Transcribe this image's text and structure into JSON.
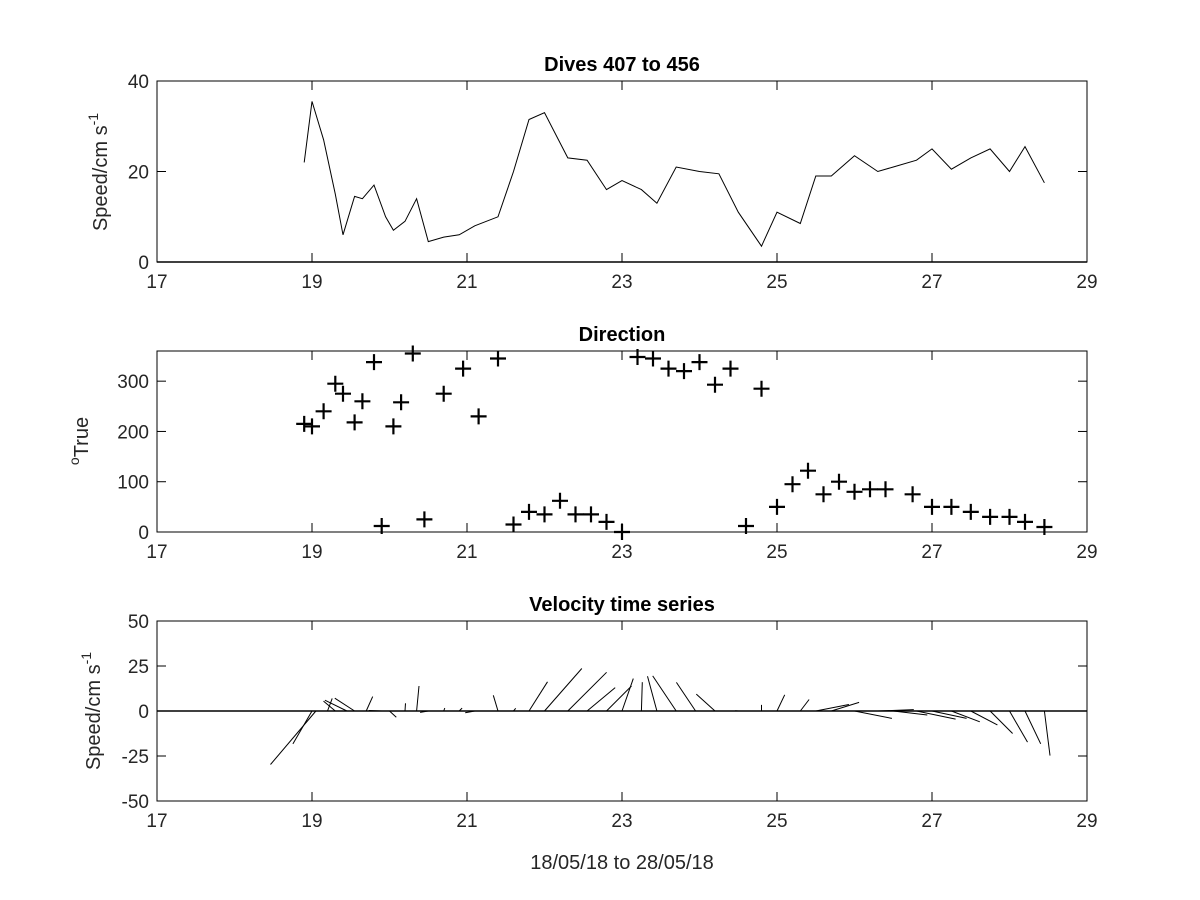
{
  "chart_data": [
    {
      "type": "line",
      "title": "Dives 407 to 456",
      "ylabel": {
        "main": "Speed/cm s",
        "superscript": "-1"
      },
      "xlim": [
        17,
        29
      ],
      "ylim": [
        0,
        40
      ],
      "xticks": [
        17,
        19,
        21,
        23,
        25,
        27,
        29
      ],
      "yticks": [
        0,
        20,
        40
      ],
      "baseline": 0,
      "series": [
        {
          "x": [
            18.9,
            19.0,
            19.15,
            19.3,
            19.4,
            19.55,
            19.65,
            19.8,
            19.95,
            20.05,
            20.2,
            20.35,
            20.5,
            20.7,
            20.9,
            21.1,
            21.4,
            21.6,
            21.8,
            22.0,
            22.3,
            22.55,
            22.8,
            23.0,
            23.25,
            23.45,
            23.7,
            24.0,
            24.25,
            24.5,
            24.8,
            25.0,
            25.3,
            25.5,
            25.7,
            26.0,
            26.3,
            26.5,
            26.8,
            27.0,
            27.25,
            27.5,
            27.75,
            28.0,
            28.2,
            28.45
          ],
          "y": [
            22,
            35.5,
            27,
            15,
            6,
            14.5,
            14,
            17,
            10,
            7,
            9,
            14,
            4.5,
            5.5,
            6,
            8,
            10,
            20,
            31.5,
            33,
            23,
            22.5,
            16,
            18,
            16,
            13,
            21,
            20,
            19.5,
            11,
            3.5,
            11,
            8.5,
            19,
            19,
            23.5,
            20,
            21,
            22.5,
            25,
            20.5,
            23,
            25,
            20,
            25.5,
            17.5
          ]
        }
      ]
    },
    {
      "type": "scatter",
      "title": "Direction",
      "ylabel": {
        "main": "True",
        "superscript": "o"
      },
      "xlim": [
        17,
        29
      ],
      "ylim": [
        0,
        360
      ],
      "xticks": [
        17,
        19,
        21,
        23,
        25,
        27,
        29
      ],
      "yticks": [
        0,
        100,
        200,
        300
      ],
      "marker": "+",
      "series": [
        {
          "x": [
            18.9,
            19.0,
            19.15,
            19.3,
            19.4,
            19.55,
            19.65,
            19.8,
            19.9,
            20.05,
            20.15,
            20.3,
            20.45,
            20.7,
            20.95,
            21.15,
            21.4,
            21.6,
            21.8,
            22.0,
            22.2,
            22.4,
            22.6,
            22.8,
            23.0,
            23.2,
            23.4,
            23.6,
            23.8,
            24.0,
            24.2,
            24.4,
            24.6,
            24.8,
            25.0,
            25.2,
            25.4,
            25.6,
            25.8,
            26.0,
            26.2,
            26.4,
            26.75,
            27.0,
            27.25,
            27.5,
            27.75,
            28.0,
            28.2,
            28.45
          ],
          "y": [
            215,
            210,
            240,
            295,
            275,
            218,
            260,
            338,
            12,
            210,
            258,
            355,
            25,
            275,
            325,
            230,
            345,
            15,
            40,
            35,
            62,
            35,
            35,
            20,
            0,
            348,
            345,
            325,
            320,
            338,
            293,
            325,
            12,
            285,
            50,
            95,
            122,
            75,
            100,
            80,
            85,
            85,
            75,
            50,
            50,
            40,
            30,
            30,
            20,
            10
          ]
        }
      ]
    },
    {
      "type": "quiver",
      "title": "Velocity time series",
      "ylabel": {
        "main": "Speed/cm s",
        "superscript": "-1"
      },
      "xlabel": "18/05/18 to 28/05/18",
      "xlim": [
        17,
        29
      ],
      "ylim": [
        -50,
        50
      ],
      "xticks": [
        17,
        19,
        21,
        23,
        25,
        27,
        29
      ],
      "yticks": [
        -50,
        -25,
        0,
        25,
        50
      ],
      "baseline": 0,
      "vectors": {
        "x": [
          19.0,
          19.05,
          19.2,
          19.3,
          19.45,
          19.55,
          19.7,
          19.9,
          20.0,
          20.2,
          20.35,
          20.5,
          20.7,
          20.9,
          21.1,
          21.4,
          21.6,
          21.8,
          22.0,
          22.3,
          22.55,
          22.8,
          23.0,
          23.25,
          23.45,
          23.7,
          23.95,
          24.2,
          24.5,
          24.8,
          25.0,
          25.3,
          25.5,
          25.7,
          26.0,
          26.3,
          26.5,
          26.8,
          27.0,
          27.25,
          27.5,
          27.75,
          28.0,
          28.2,
          28.45
        ],
        "u": [
          -10.6,
          -25.2,
          2.6,
          -6.5,
          -12.2,
          -11.0,
          3.6,
          -7.2,
          3.8,
          0.3,
          1.3,
          -4.5,
          0.6,
          1.6,
          -5.3,
          -2.6,
          1.2,
          10.3,
          20.7,
          21.6,
          15.6,
          13.9,
          6.3,
          0.5,
          -5.2,
          -13.1,
          -10.7,
          -10.4,
          -1.7,
          0.0,
          4.3,
          4.9,
          18.4,
          15.5,
          20.8,
          20.0,
          18.9,
          21.7,
          19.2,
          15.8,
          14.8,
          12.5,
          10.0,
          8.7,
          3.1
        ],
        "v": [
          -18.3,
          -29.7,
          7.0,
          5.5,
          6.0,
          7.1,
          8.0,
          0.3,
          -3.5,
          4.3,
          13.9,
          -0.8,
          1.6,
          1.6,
          -1.0,
          8.7,
          1.5,
          16.2,
          23.6,
          21.5,
          13.0,
          13.9,
          18.0,
          16.0,
          19.3,
          19.5,
          15.9,
          9.4,
          0.1,
          3.4,
          9.0,
          6.4,
          3.6,
          4.8,
          -4.1,
          0.8,
          -2.2,
          -4.5,
          -4.1,
          -6.0,
          -7.7,
          -12.5,
          -17.3,
          -18.2,
          -24.8
        ]
      }
    }
  ]
}
